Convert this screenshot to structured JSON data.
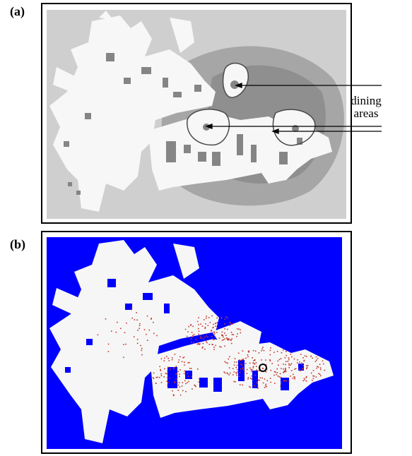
{
  "panels": [
    {
      "label": "(a)",
      "kind": "occupancy-grid-map"
    },
    {
      "label": "(b)",
      "kind": "particle-distribution-map"
    }
  ],
  "annotation": {
    "line1": "dining",
    "line2": "areas"
  },
  "colors": {
    "map_background": "#cfcfcf",
    "free_space": "#f6f6f6",
    "obstacle": "#808080",
    "shadow": "#a8a8a8",
    "panel_b_background": "#0000ff",
    "particles": "#c0392b",
    "robot_marker": "#000000"
  }
}
